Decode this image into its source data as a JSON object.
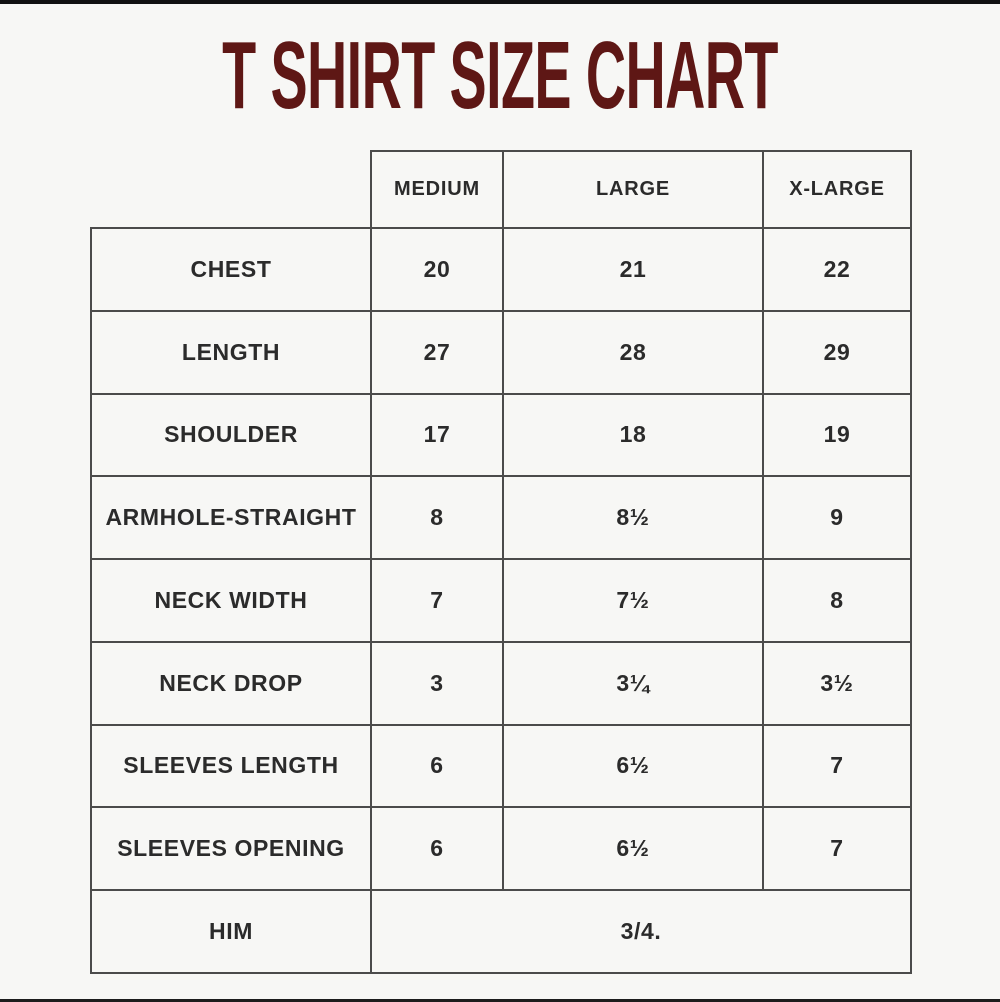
{
  "title": "T SHIRT SIZE CHART",
  "colors": {
    "title": "#5e1715",
    "table_border": "#4b4b4b",
    "background": "#f7f7f5",
    "text": "#2b2b2b"
  },
  "table": {
    "columns": [
      "MEDIUM",
      "LARGE",
      "X-LARGE"
    ],
    "rows": [
      {
        "label": "CHEST",
        "values": [
          "20",
          "21",
          "22"
        ]
      },
      {
        "label": "LENGTH",
        "values": [
          "27",
          "28",
          "29"
        ]
      },
      {
        "label": "SHOULDER",
        "values": [
          "17",
          "18",
          "19"
        ]
      },
      {
        "label": "ARMHOLE-STRAIGHT",
        "values": [
          "8",
          "8½",
          "9"
        ]
      },
      {
        "label": "NECK WIDTH",
        "values": [
          "7",
          "7½",
          "8"
        ]
      },
      {
        "label": "NECK DROP",
        "values": [
          "3",
          "3¼",
          "3½"
        ]
      },
      {
        "label": "SLEEVES LENGTH",
        "values": [
          "6",
          "6½",
          "7"
        ]
      },
      {
        "label": "SLEEVES OPENING",
        "values": [
          "6",
          "6½",
          "7"
        ]
      }
    ],
    "footer_row": {
      "label": "HIM",
      "value": "3/4."
    }
  },
  "chart_data": {
    "type": "table",
    "title": "T SHIRT SIZE CHART",
    "columns": [
      "",
      "MEDIUM",
      "LARGE",
      "X-LARGE"
    ],
    "rows": [
      [
        "CHEST",
        "20",
        "21",
        "22"
      ],
      [
        "LENGTH",
        "27",
        "28",
        "29"
      ],
      [
        "SHOULDER",
        "17",
        "18",
        "19"
      ],
      [
        "ARMHOLE-STRAIGHT",
        "8",
        "8½",
        "9"
      ],
      [
        "NECK WIDTH",
        "7",
        "7½",
        "8"
      ],
      [
        "NECK DROP",
        "3",
        "3¼",
        "3½"
      ],
      [
        "SLEEVES LENGTH",
        "6",
        "6½",
        "7"
      ],
      [
        "SLEEVES OPENING",
        "6",
        "6½",
        "7"
      ],
      [
        "HIM",
        "3/4.",
        "",
        ""
      ]
    ],
    "notes": "Last row value 3/4. spans MEDIUM, LARGE and X-LARGE columns"
  }
}
